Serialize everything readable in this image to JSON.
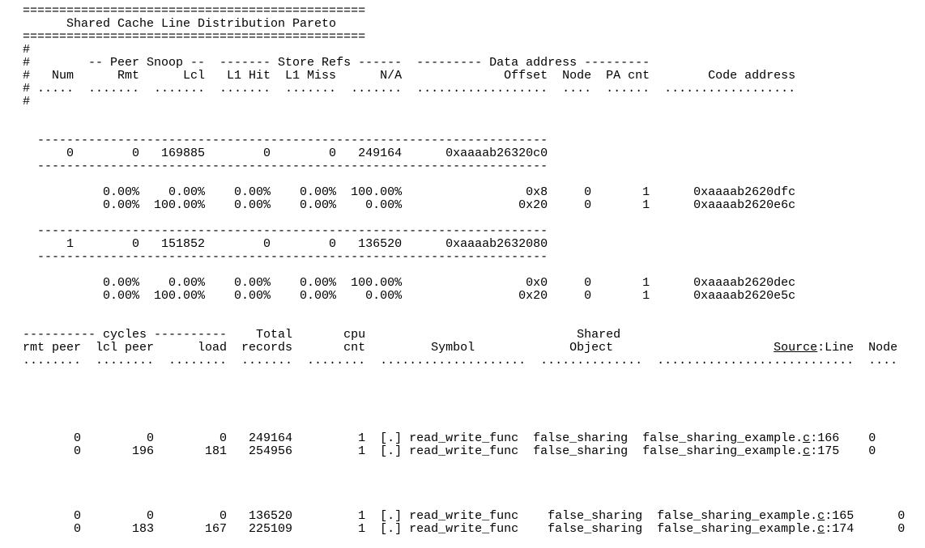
{
  "colors": {
    "background": "#ffffff",
    "text": "#000000"
  },
  "report": {
    "title": "Shared Cache Line Distribution Pareto",
    "pareto_table": {
      "column_groups": [
        "-- Peer Snoop --",
        "------- Store Refs ------",
        "--------- Data address ---------"
      ],
      "columns": [
        "Num",
        "Rmt",
        "Lcl",
        "L1 Hit",
        "L1 Miss",
        "N/A",
        "Offset",
        "Node",
        "PA cnt",
        "Code address"
      ],
      "cache_lines": [
        {
          "num": "0",
          "rmt": "0",
          "lcl": "169885",
          "l1_hit": "0",
          "l1_miss": "0",
          "n_a": "249164",
          "data_address": "0xaaaab26320c0",
          "rows": [
            {
              "rmt": "0.00%",
              "lcl": "0.00%",
              "l1_hit": "0.00%",
              "l1_miss": "0.00%",
              "n_a": "100.00%",
              "offset": "0x8",
              "node": "0",
              "pa_cnt": "1",
              "code_address": "0xaaaab2620dfc"
            },
            {
              "rmt": "0.00%",
              "lcl": "100.00%",
              "l1_hit": "0.00%",
              "l1_miss": "0.00%",
              "n_a": "0.00%",
              "offset": "0x20",
              "node": "0",
              "pa_cnt": "1",
              "code_address": "0xaaaab2620e6c"
            }
          ]
        },
        {
          "num": "1",
          "rmt": "0",
          "lcl": "151852",
          "l1_hit": "0",
          "l1_miss": "0",
          "n_a": "136520",
          "data_address": "0xaaaab2632080",
          "rows": [
            {
              "rmt": "0.00%",
              "lcl": "0.00%",
              "l1_hit": "0.00%",
              "l1_miss": "0.00%",
              "n_a": "100.00%",
              "offset": "0x0",
              "node": "0",
              "pa_cnt": "1",
              "code_address": "0xaaaab2620dec"
            },
            {
              "rmt": "0.00%",
              "lcl": "100.00%",
              "l1_hit": "0.00%",
              "l1_miss": "0.00%",
              "n_a": "0.00%",
              "offset": "0x20",
              "node": "0",
              "pa_cnt": "1",
              "code_address": "0xaaaab2620e5c"
            }
          ]
        }
      ]
    },
    "detail_table": {
      "columns": [
        "rmt peer",
        "lcl peer",
        "load",
        "Total records",
        "cpu cnt",
        "Symbol",
        "Shared Object",
        "Source:Line",
        "Node"
      ],
      "rows": [
        {
          "rmt_peer": "0",
          "lcl_peer": "0",
          "load": "0",
          "total_records": "249164",
          "cpu_cnt": "1",
          "symbol": "[.] read_write_func",
          "shared_object": "false_sharing",
          "source_line": "false_sharing_example.c:166",
          "node": "0"
        },
        {
          "rmt_peer": "0",
          "lcl_peer": "196",
          "load": "181",
          "total_records": "254956",
          "cpu_cnt": "1",
          "symbol": "[.] read_write_func",
          "shared_object": "false_sharing",
          "source_line": "false_sharing_example.c:175",
          "node": "0"
        },
        {
          "rmt_peer": "0",
          "lcl_peer": "0",
          "load": "0",
          "total_records": "136520",
          "cpu_cnt": "1",
          "symbol": "[.] read_write_func",
          "shared_object": "false_sharing",
          "source_line": "false_sharing_example.c:165",
          "node": "0"
        },
        {
          "rmt_peer": "0",
          "lcl_peer": "183",
          "load": "167",
          "total_records": "225109",
          "cpu_cnt": "1",
          "symbol": "[.] read_write_func",
          "shared_object": "false_sharing",
          "source_line": "false_sharing_example.c:174",
          "node": "0"
        }
      ]
    }
  },
  "terminal": {
    "lines": [
      "===============================================",
      "      Shared Cache Line Distribution Pareto",
      "===============================================",
      "#",
      "#        -- Peer Snoop --  ------- Store Refs ------  --------- Data address ---------",
      "#   Num      Rmt      Lcl   L1 Hit  L1 Miss      N/A              Offset  Node  PA cnt        Code address",
      "# .....  .......  .......  .......  .......  .......  ..................  ....  ......  ..................",
      "#",
      "",
      "",
      "  ----------------------------------------------------------------------",
      "      0        0   169885        0        0   249164      0xaaaab26320c0",
      "  ----------------------------------------------------------------------",
      "",
      "           0.00%    0.00%    0.00%    0.00%  100.00%                 0x8     0       1      0xaaaab2620dfc",
      "           0.00%  100.00%    0.00%    0.00%    0.00%                0x20     0       1      0xaaaab2620e6c",
      "",
      "  ----------------------------------------------------------------------",
      "      1        0   151852        0        0   136520      0xaaaab2632080",
      "  ----------------------------------------------------------------------",
      "",
      "           0.00%    0.00%    0.00%    0.00%  100.00%                 0x0     0       1      0xaaaab2620dec",
      "           0.00%  100.00%    0.00%    0.00%    0.00%                0x20     0       1      0xaaaab2620e5c",
      "",
      "",
      "---------- cycles ----------    Total       cpu                             Shared",
      [
        {
          "t": "rmt peer  lcl peer      load  records       cnt         Symbol             Object                      "
        },
        {
          "t": "Source",
          "u": true
        },
        {
          "t": ":Line  Node"
        }
      ],
      "........  ........  ........  .......  ........  ....................  ..............  ...........................  ....",
      "",
      "",
      "",
      "",
      "",
      [
        {
          "t": "       0         0         0   249164         1  [.] read_write_func  false_sharing  false_sharing_example."
        },
        {
          "t": "c",
          "u": true
        },
        {
          "t": ":166    0"
        }
      ],
      [
        {
          "t": "       0       196       181   254956         1  [.] read_write_func  false_sharing  false_sharing_example."
        },
        {
          "t": "c",
          "u": true
        },
        {
          "t": ":175    0"
        }
      ],
      "",
      "",
      "",
      "",
      [
        {
          "t": "       0         0         0   136520         1  [.] read_write_func    false_sharing  false_sharing_example."
        },
        {
          "t": "c",
          "u": true
        },
        {
          "t": ":165      0"
        }
      ],
      [
        {
          "t": "       0       183       167   225109         1  [.] read_write_func    false_sharing  false_sharing_example."
        },
        {
          "t": "c",
          "u": true
        },
        {
          "t": ":174      0"
        }
      ]
    ]
  }
}
